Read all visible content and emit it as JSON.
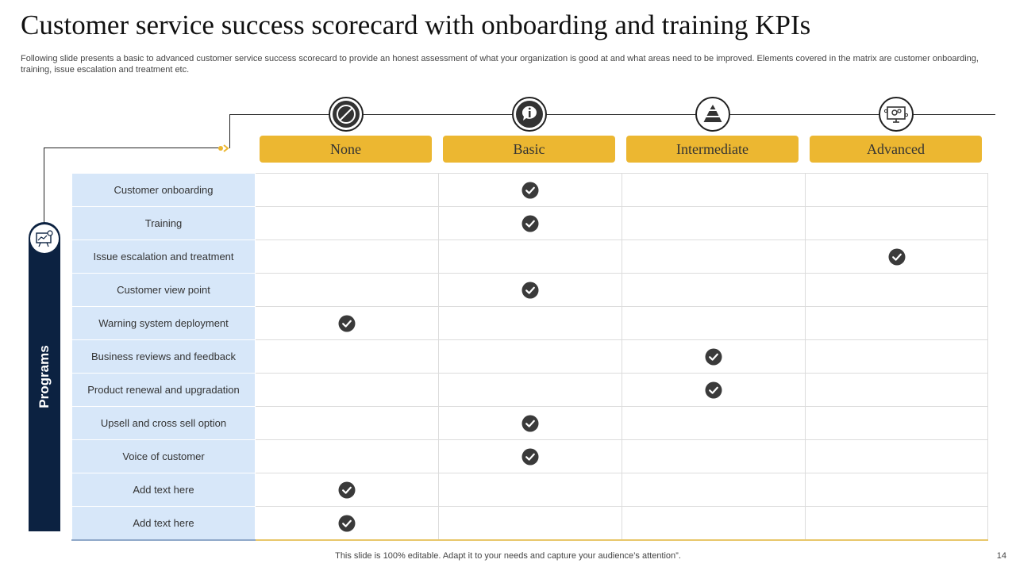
{
  "slide": {
    "title": "Customer service success scorecard with onboarding and training KPIs",
    "subtitle": "Following slide presents a basic to advanced customer service success scorecard to provide an honest assessment of what your organization is good at and what areas need to be improved. Elements covered in the matrix are customer onboarding, training, issue escalation and treatment etc.",
    "footer": "This slide is 100% editable. Adapt it to your needs and capture your audience’s attention”.",
    "page_number": "14"
  },
  "columns": [
    {
      "label": "None",
      "icon": "prohibited-icon"
    },
    {
      "label": "Basic",
      "icon": "info-speech-bubble-icon"
    },
    {
      "label": "Intermediate",
      "icon": "pyramid-icon"
    },
    {
      "label": "Advanced",
      "icon": "monitor-gears-icon"
    }
  ],
  "programs": {
    "label": "Programs",
    "icon": "presentation-icon"
  },
  "rows": [
    {
      "label": "Customer onboarding",
      "level": "Basic"
    },
    {
      "label": "Training",
      "level": "Basic"
    },
    {
      "label": "Issue escalation and treatment",
      "level": "Advanced"
    },
    {
      "label": "Customer view  point",
      "level": "Basic"
    },
    {
      "label": "Warning system deployment",
      "level": "None"
    },
    {
      "label": "Business reviews  and feedback",
      "level": "Intermediate"
    },
    {
      "label": "Product renewal  and upgradation",
      "level": "Intermediate"
    },
    {
      "label": "Upsell and cross sell option",
      "level": "Basic"
    },
    {
      "label": "Voice of customer",
      "level": "Basic"
    },
    {
      "label": "Add text here",
      "level": "None"
    },
    {
      "label": "Add text here",
      "level": "None"
    }
  ],
  "colors": {
    "accent": "#ECB731",
    "navy": "#0C2241",
    "label_bg": "#D7E7F9",
    "check": "#3a3a3a"
  }
}
